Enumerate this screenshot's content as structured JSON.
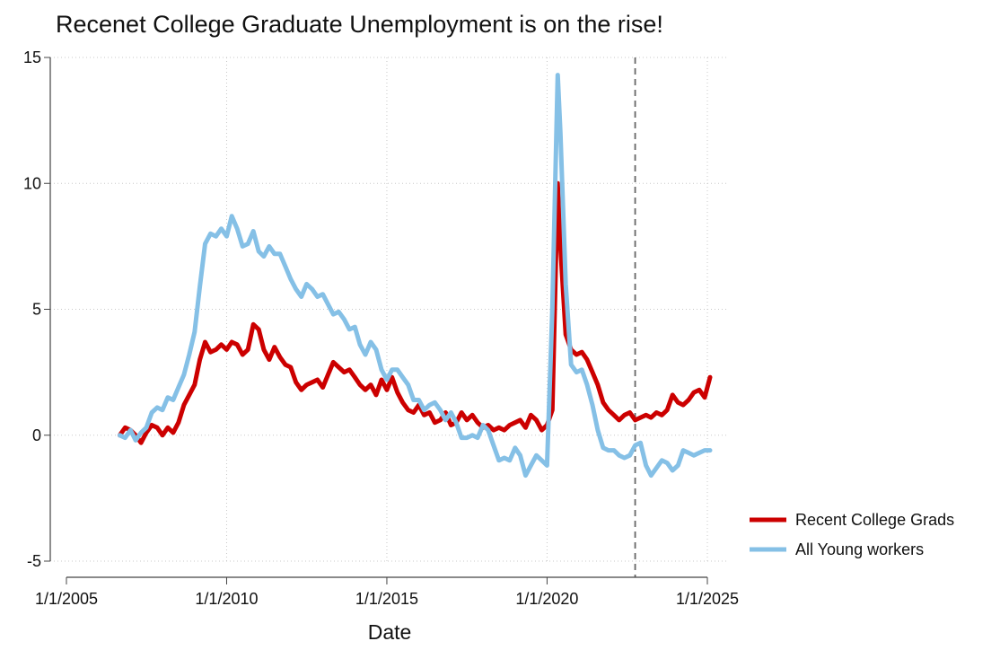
{
  "chart_data": {
    "type": "line",
    "title": "Recenet College Graduate Unemployment is on the rise!",
    "xlabel": "Date",
    "ylabel": "",
    "xlim": [
      "2005-01-01",
      "2025-06-01"
    ],
    "ylim": [
      -5,
      15
    ],
    "x_ticks": [
      "1/1/2005",
      "1/1/2010",
      "1/1/2015",
      "1/1/2020",
      "1/1/2025"
    ],
    "y_ticks": [
      "-5",
      "0",
      "5",
      "10",
      "15"
    ],
    "grid": true,
    "vertical_reference_line": {
      "x": "2022-10-01",
      "style": "dashed"
    },
    "legend_position": "right",
    "series": [
      {
        "name": "Recent College Grads",
        "color": "#cc0000",
        "points": [
          [
            "2006-09-01",
            0.0
          ],
          [
            "2006-11-01",
            0.3
          ],
          [
            "2007-01-01",
            0.2
          ],
          [
            "2007-03-01",
            0.0
          ],
          [
            "2007-05-01",
            -0.3
          ],
          [
            "2007-07-01",
            0.1
          ],
          [
            "2007-09-01",
            0.4
          ],
          [
            "2007-11-01",
            0.3
          ],
          [
            "2008-01-01",
            0.0
          ],
          [
            "2008-03-01",
            0.3
          ],
          [
            "2008-05-01",
            0.1
          ],
          [
            "2008-07-01",
            0.5
          ],
          [
            "2008-09-01",
            1.2
          ],
          [
            "2008-11-01",
            1.6
          ],
          [
            "2009-01-01",
            2.0
          ],
          [
            "2009-03-01",
            3.0
          ],
          [
            "2009-05-01",
            3.7
          ],
          [
            "2009-07-01",
            3.3
          ],
          [
            "2009-09-01",
            3.4
          ],
          [
            "2009-11-01",
            3.6
          ],
          [
            "2010-01-01",
            3.4
          ],
          [
            "2010-03-01",
            3.7
          ],
          [
            "2010-05-01",
            3.6
          ],
          [
            "2010-07-01",
            3.2
          ],
          [
            "2010-09-01",
            3.4
          ],
          [
            "2010-11-01",
            4.4
          ],
          [
            "2011-01-01",
            4.2
          ],
          [
            "2011-03-01",
            3.4
          ],
          [
            "2011-05-01",
            3.0
          ],
          [
            "2011-07-01",
            3.5
          ],
          [
            "2011-09-01",
            3.1
          ],
          [
            "2011-11-01",
            2.8
          ],
          [
            "2012-01-01",
            2.7
          ],
          [
            "2012-03-01",
            2.1
          ],
          [
            "2012-05-01",
            1.8
          ],
          [
            "2012-07-01",
            2.0
          ],
          [
            "2012-09-01",
            2.1
          ],
          [
            "2012-11-01",
            2.2
          ],
          [
            "2013-01-01",
            1.9
          ],
          [
            "2013-03-01",
            2.4
          ],
          [
            "2013-05-01",
            2.9
          ],
          [
            "2013-07-01",
            2.7
          ],
          [
            "2013-09-01",
            2.5
          ],
          [
            "2013-11-01",
            2.6
          ],
          [
            "2014-01-01",
            2.3
          ],
          [
            "2014-03-01",
            2.0
          ],
          [
            "2014-05-01",
            1.8
          ],
          [
            "2014-07-01",
            2.0
          ],
          [
            "2014-09-01",
            1.6
          ],
          [
            "2014-11-01",
            2.2
          ],
          [
            "2015-01-01",
            1.8
          ],
          [
            "2015-03-01",
            2.3
          ],
          [
            "2015-05-01",
            1.7
          ],
          [
            "2015-07-01",
            1.3
          ],
          [
            "2015-09-01",
            1.0
          ],
          [
            "2015-11-01",
            0.9
          ],
          [
            "2016-01-01",
            1.2
          ],
          [
            "2016-03-01",
            0.8
          ],
          [
            "2016-05-01",
            0.9
          ],
          [
            "2016-07-01",
            0.5
          ],
          [
            "2016-09-01",
            0.6
          ],
          [
            "2016-11-01",
            0.9
          ],
          [
            "2017-01-01",
            0.4
          ],
          [
            "2017-03-01",
            0.5
          ],
          [
            "2017-05-01",
            0.9
          ],
          [
            "2017-07-01",
            0.6
          ],
          [
            "2017-09-01",
            0.8
          ],
          [
            "2017-11-01",
            0.5
          ],
          [
            "2018-01-01",
            0.3
          ],
          [
            "2018-03-01",
            0.4
          ],
          [
            "2018-05-01",
            0.2
          ],
          [
            "2018-07-01",
            0.3
          ],
          [
            "2018-09-01",
            0.2
          ],
          [
            "2018-11-01",
            0.4
          ],
          [
            "2019-01-01",
            0.5
          ],
          [
            "2019-03-01",
            0.6
          ],
          [
            "2019-05-01",
            0.3
          ],
          [
            "2019-07-01",
            0.8
          ],
          [
            "2019-09-01",
            0.6
          ],
          [
            "2019-11-01",
            0.2
          ],
          [
            "2020-01-01",
            0.4
          ],
          [
            "2020-03-01",
            1.0
          ],
          [
            "2020-05-01",
            10.0
          ],
          [
            "2020-06-01",
            7.5
          ],
          [
            "2020-08-01",
            4.0
          ],
          [
            "2020-10-01",
            3.4
          ],
          [
            "2020-12-01",
            3.2
          ],
          [
            "2021-02-01",
            3.3
          ],
          [
            "2021-04-01",
            3.0
          ],
          [
            "2021-06-01",
            2.5
          ],
          [
            "2021-08-01",
            2.0
          ],
          [
            "2021-10-01",
            1.3
          ],
          [
            "2021-12-01",
            1.0
          ],
          [
            "2022-02-01",
            0.8
          ],
          [
            "2022-04-01",
            0.6
          ],
          [
            "2022-06-01",
            0.8
          ],
          [
            "2022-08-01",
            0.9
          ],
          [
            "2022-10-01",
            0.6
          ],
          [
            "2022-12-01",
            0.7
          ],
          [
            "2023-02-01",
            0.8
          ],
          [
            "2023-04-01",
            0.7
          ],
          [
            "2023-06-01",
            0.9
          ],
          [
            "2023-08-01",
            0.8
          ],
          [
            "2023-10-01",
            1.0
          ],
          [
            "2023-12-01",
            1.6
          ],
          [
            "2024-02-01",
            1.3
          ],
          [
            "2024-04-01",
            1.2
          ],
          [
            "2024-06-01",
            1.4
          ],
          [
            "2024-08-01",
            1.7
          ],
          [
            "2024-10-01",
            1.8
          ],
          [
            "2024-12-01",
            1.5
          ],
          [
            "2025-02-01",
            2.3
          ]
        ]
      },
      {
        "name": "All Young workers",
        "color": "#85c0e6",
        "points": [
          [
            "2006-09-01",
            0.0
          ],
          [
            "2006-11-01",
            -0.1
          ],
          [
            "2007-01-01",
            0.2
          ],
          [
            "2007-03-01",
            -0.2
          ],
          [
            "2007-05-01",
            0.1
          ],
          [
            "2007-07-01",
            0.3
          ],
          [
            "2007-09-01",
            0.9
          ],
          [
            "2007-11-01",
            1.1
          ],
          [
            "2008-01-01",
            1.0
          ],
          [
            "2008-03-01",
            1.5
          ],
          [
            "2008-05-01",
            1.4
          ],
          [
            "2008-07-01",
            1.9
          ],
          [
            "2008-09-01",
            2.4
          ],
          [
            "2008-11-01",
            3.2
          ],
          [
            "2009-01-01",
            4.1
          ],
          [
            "2009-03-01",
            5.9
          ],
          [
            "2009-05-01",
            7.6
          ],
          [
            "2009-07-01",
            8.0
          ],
          [
            "2009-09-01",
            7.9
          ],
          [
            "2009-11-01",
            8.2
          ],
          [
            "2010-01-01",
            7.9
          ],
          [
            "2010-03-01",
            8.7
          ],
          [
            "2010-05-01",
            8.2
          ],
          [
            "2010-07-01",
            7.5
          ],
          [
            "2010-09-01",
            7.6
          ],
          [
            "2010-11-01",
            8.1
          ],
          [
            "2011-01-01",
            7.3
          ],
          [
            "2011-03-01",
            7.1
          ],
          [
            "2011-05-01",
            7.5
          ],
          [
            "2011-07-01",
            7.2
          ],
          [
            "2011-09-01",
            7.2
          ],
          [
            "2011-11-01",
            6.7
          ],
          [
            "2012-01-01",
            6.2
          ],
          [
            "2012-03-01",
            5.8
          ],
          [
            "2012-05-01",
            5.5
          ],
          [
            "2012-07-01",
            6.0
          ],
          [
            "2012-09-01",
            5.8
          ],
          [
            "2012-11-01",
            5.5
          ],
          [
            "2013-01-01",
            5.6
          ],
          [
            "2013-03-01",
            5.2
          ],
          [
            "2013-05-01",
            4.8
          ],
          [
            "2013-07-01",
            4.9
          ],
          [
            "2013-09-01",
            4.6
          ],
          [
            "2013-11-01",
            4.2
          ],
          [
            "2014-01-01",
            4.3
          ],
          [
            "2014-03-01",
            3.6
          ],
          [
            "2014-05-01",
            3.2
          ],
          [
            "2014-07-01",
            3.7
          ],
          [
            "2014-09-01",
            3.4
          ],
          [
            "2014-11-01",
            2.6
          ],
          [
            "2015-01-01",
            2.2
          ],
          [
            "2015-03-01",
            2.6
          ],
          [
            "2015-05-01",
            2.6
          ],
          [
            "2015-07-01",
            2.3
          ],
          [
            "2015-09-01",
            2.0
          ],
          [
            "2015-11-01",
            1.4
          ],
          [
            "2016-01-01",
            1.4
          ],
          [
            "2016-03-01",
            1.0
          ],
          [
            "2016-05-01",
            1.2
          ],
          [
            "2016-07-01",
            1.3
          ],
          [
            "2016-09-01",
            1.0
          ],
          [
            "2016-11-01",
            0.6
          ],
          [
            "2017-01-01",
            0.9
          ],
          [
            "2017-03-01",
            0.5
          ],
          [
            "2017-05-01",
            -0.1
          ],
          [
            "2017-07-01",
            -0.1
          ],
          [
            "2017-09-01",
            0.0
          ],
          [
            "2017-11-01",
            -0.1
          ],
          [
            "2018-01-01",
            0.4
          ],
          [
            "2018-03-01",
            0.2
          ],
          [
            "2018-05-01",
            -0.4
          ],
          [
            "2018-07-01",
            -1.0
          ],
          [
            "2018-09-01",
            -0.9
          ],
          [
            "2018-11-01",
            -1.0
          ],
          [
            "2019-01-01",
            -0.5
          ],
          [
            "2019-03-01",
            -0.8
          ],
          [
            "2019-05-01",
            -1.6
          ],
          [
            "2019-07-01",
            -1.2
          ],
          [
            "2019-09-01",
            -0.8
          ],
          [
            "2019-11-01",
            -1.0
          ],
          [
            "2020-01-01",
            -1.2
          ],
          [
            "2020-03-01",
            5.0
          ],
          [
            "2020-05-01",
            14.3
          ],
          [
            "2020-06-01",
            12.0
          ],
          [
            "2020-08-01",
            6.0
          ],
          [
            "2020-10-01",
            2.8
          ],
          [
            "2020-12-01",
            2.5
          ],
          [
            "2021-02-01",
            2.6
          ],
          [
            "2021-04-01",
            2.0
          ],
          [
            "2021-06-01",
            1.2
          ],
          [
            "2021-08-01",
            0.2
          ],
          [
            "2021-10-01",
            -0.5
          ],
          [
            "2021-12-01",
            -0.6
          ],
          [
            "2022-02-01",
            -0.6
          ],
          [
            "2022-04-01",
            -0.8
          ],
          [
            "2022-06-01",
            -0.9
          ],
          [
            "2022-08-01",
            -0.8
          ],
          [
            "2022-10-01",
            -0.4
          ],
          [
            "2022-12-01",
            -0.3
          ],
          [
            "2023-02-01",
            -1.2
          ],
          [
            "2023-04-01",
            -1.6
          ],
          [
            "2023-06-01",
            -1.3
          ],
          [
            "2023-08-01",
            -1.0
          ],
          [
            "2023-10-01",
            -1.1
          ],
          [
            "2023-12-01",
            -1.4
          ],
          [
            "2024-02-01",
            -1.2
          ],
          [
            "2024-04-01",
            -0.6
          ],
          [
            "2024-06-01",
            -0.7
          ],
          [
            "2024-08-01",
            -0.8
          ],
          [
            "2024-10-01",
            -0.7
          ],
          [
            "2024-12-01",
            -0.6
          ],
          [
            "2025-02-01",
            -0.6
          ]
        ]
      }
    ]
  }
}
